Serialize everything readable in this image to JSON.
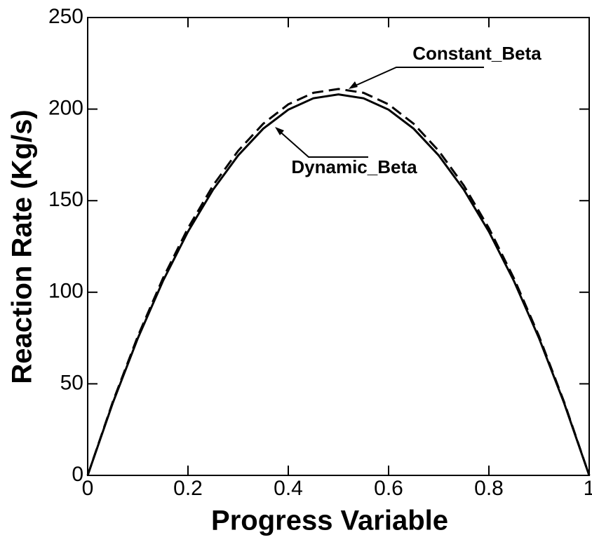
{
  "chart_data": {
    "type": "line",
    "xlabel": "Progress Variable",
    "ylabel": "Reaction Rate (Kg/s)",
    "x": [
      0,
      0.05,
      0.1,
      0.15,
      0.2,
      0.25,
      0.3,
      0.35,
      0.4,
      0.45,
      0.5,
      0.55,
      0.6,
      0.65,
      0.7,
      0.75,
      0.8,
      0.85,
      0.9,
      0.95,
      1
    ],
    "series": [
      {
        "name": "Dynamic_Beta",
        "color": "#000000",
        "dash": "solid",
        "values": [
          0,
          39.5,
          74.9,
          106.1,
          133.1,
          156,
          174.7,
          189.3,
          199.7,
          205.9,
          208,
          205.9,
          199.7,
          189.3,
          174.7,
          156,
          133.1,
          106.1,
          74.9,
          39.5,
          0
        ]
      },
      {
        "name": "Constant_Beta",
        "color": "#000000",
        "dash": "dashed",
        "values": [
          0,
          40.1,
          76,
          107.6,
          135,
          158.3,
          177.2,
          192,
          202.6,
          208.9,
          211,
          208.9,
          202.6,
          192,
          177.2,
          158.3,
          135,
          107.6,
          76,
          40.1,
          0
        ]
      }
    ],
    "xlim": [
      0,
      1
    ],
    "ylim": [
      0,
      250
    ],
    "xticks": [
      0,
      0.2,
      0.4,
      0.6,
      0.8,
      1
    ],
    "yticks": [
      0,
      50,
      100,
      150,
      200,
      250
    ],
    "grid": false
  }
}
